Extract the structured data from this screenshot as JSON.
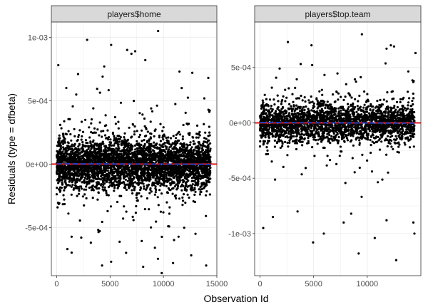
{
  "chart_data": {
    "type": "scatter",
    "xlabel": "Observation Id",
    "ylabel": "Residuals (type = dfbeta)",
    "colors": {
      "points": "#000000",
      "zero_line": "#e41a1c",
      "smooth_line": "#1f3fbf",
      "strip_fill": "#d9d9d9",
      "panel_border": "#333333",
      "grid": "#ebebeb"
    },
    "panels": [
      {
        "title": "players$home",
        "xlim": [
          -500,
          15000
        ],
        "ylim": [
          -0.00088,
          0.00112
        ],
        "x_ticks": [
          0,
          5000,
          10000,
          15000
        ],
        "x_tick_labels": [
          "0",
          "5000",
          "10000",
          "15000"
        ],
        "y_ticks": [
          -0.0005,
          0,
          0.0005,
          0.001
        ],
        "y_tick_labels": [
          "-5e-04",
          "0e+00",
          "5e-04",
          "1e-03"
        ],
        "n_obs": 14400,
        "zero_line": 0,
        "outliers": [
          [
            150,
            0.00078
          ],
          [
            9500,
            0.00105
          ],
          [
            2850,
            0.00098
          ],
          [
            5100,
            0.00094
          ],
          [
            6600,
            0.0009
          ],
          [
            7000,
            0.00087
          ],
          [
            7350,
            0.00089
          ],
          [
            4450,
            0.00077
          ],
          [
            4300,
            0.00069
          ],
          [
            2000,
            0.00071
          ],
          [
            12700,
            0.00072
          ],
          [
            8300,
            0.00082
          ],
          [
            14200,
            0.00068
          ],
          [
            11500,
            0.00073
          ],
          [
            900,
            0.0006
          ],
          [
            3200,
            -0.00062
          ],
          [
            5100,
            -0.00077
          ],
          [
            4250,
            -0.0008
          ],
          [
            8100,
            -0.00081
          ],
          [
            10900,
            -0.00078
          ],
          [
            14000,
            -0.0008
          ],
          [
            1000,
            -0.00067
          ],
          [
            6500,
            -0.0007
          ],
          [
            12600,
            -0.00072
          ],
          [
            9200,
            -0.00066
          ],
          [
            2300,
            -0.00058
          ],
          [
            13000,
            -0.00055
          ]
        ]
      },
      {
        "title": "players$top.team",
        "xlim": [
          -500,
          15000
        ],
        "ylim": [
          -0.00138,
          0.00091
        ],
        "x_ticks": [
          0,
          5000,
          10000
        ],
        "x_tick_labels": [
          "0",
          "5000",
          "10000"
        ],
        "y_ticks": [
          -0.001,
          -0.0005,
          0,
          0.0005
        ],
        "y_tick_labels": [
          "-1e-03",
          "-5e-04",
          "0e+00",
          "5e-04"
        ],
        "n_obs": 14400,
        "zero_line": 0,
        "outliers": [
          [
            9500,
            0.0008
          ],
          [
            2600,
            0.00073
          ],
          [
            4800,
            0.0007
          ],
          [
            12200,
            0.0007
          ],
          [
            12500,
            0.00069
          ],
          [
            11800,
            0.00067
          ],
          [
            14500,
            0.00063
          ],
          [
            300,
            -0.00095
          ],
          [
            4950,
            -0.00108
          ],
          [
            5950,
            -0.001
          ],
          [
            9200,
            -0.00118
          ],
          [
            10700,
            -0.00104
          ],
          [
            12700,
            -0.00124
          ],
          [
            14400,
            -0.001
          ],
          [
            14300,
            -0.0009
          ],
          [
            7800,
            -0.0009
          ],
          [
            3500,
            -0.0008
          ],
          [
            1200,
            -0.00085
          ],
          [
            11800,
            -0.00088
          ],
          [
            8500,
            -0.00082
          ]
        ]
      }
    ]
  }
}
